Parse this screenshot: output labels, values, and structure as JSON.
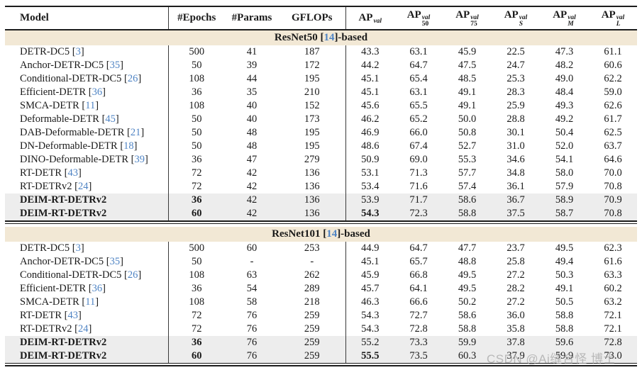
{
  "columns": {
    "model": "Model",
    "epochs": "#Epochs",
    "params": "#Params",
    "gflops": "GFLOPs",
    "ap": [
      {
        "base": "AP",
        "sup": "val",
        "sub": "",
        "sub_italic": false
      },
      {
        "base": "AP",
        "sup": "val",
        "sub": "50",
        "sub_italic": false
      },
      {
        "base": "AP",
        "sup": "val",
        "sub": "75",
        "sub_italic": false
      },
      {
        "base": "AP",
        "sup": "val",
        "sub": "S",
        "sub_italic": true
      },
      {
        "base": "AP",
        "sup": "val",
        "sub": "M",
        "sub_italic": true
      },
      {
        "base": "AP",
        "sup": "val",
        "sub": "L",
        "sub_italic": true
      }
    ]
  },
  "sections": [
    {
      "title": {
        "before": "ResNet50 [",
        "cite": "14",
        "after": "]-based"
      },
      "rows": [
        {
          "model": "DETR-DC5",
          "cite": "3",
          "epochs": "500",
          "params": "41",
          "gflops": "187",
          "ap": [
            "43.3",
            "63.1",
            "45.9",
            "22.5",
            "47.3",
            "61.1"
          ]
        },
        {
          "model": "Anchor-DETR-DC5",
          "cite": "35",
          "epochs": "50",
          "params": "39",
          "gflops": "172",
          "ap": [
            "44.2",
            "64.7",
            "47.5",
            "24.7",
            "48.2",
            "60.6"
          ]
        },
        {
          "model": "Conditional-DETR-DC5",
          "cite": "26",
          "epochs": "108",
          "params": "44",
          "gflops": "195",
          "ap": [
            "45.1",
            "65.4",
            "48.5",
            "25.3",
            "49.0",
            "62.2"
          ]
        },
        {
          "model": "Efficient-DETR",
          "cite": "36",
          "epochs": "36",
          "params": "35",
          "gflops": "210",
          "ap": [
            "45.1",
            "63.1",
            "49.1",
            "28.3",
            "48.4",
            "59.0"
          ]
        },
        {
          "model": "SMCA-DETR",
          "cite": "11",
          "epochs": "108",
          "params": "40",
          "gflops": "152",
          "ap": [
            "45.6",
            "65.5",
            "49.1",
            "25.9",
            "49.3",
            "62.6"
          ]
        },
        {
          "model": "Deformable-DETR",
          "cite": "45",
          "epochs": "50",
          "params": "40",
          "gflops": "173",
          "ap": [
            "46.2",
            "65.2",
            "50.0",
            "28.8",
            "49.2",
            "61.7"
          ]
        },
        {
          "model": "DAB-Deformable-DETR",
          "cite": "21",
          "epochs": "50",
          "params": "48",
          "gflops": "195",
          "ap": [
            "46.9",
            "66.0",
            "50.8",
            "30.1",
            "50.4",
            "62.5"
          ]
        },
        {
          "model": "DN-Deformable-DETR",
          "cite": "18",
          "epochs": "50",
          "params": "48",
          "gflops": "195",
          "ap": [
            "48.6",
            "67.4",
            "52.7",
            "31.0",
            "52.0",
            "63.7"
          ]
        },
        {
          "model": "DINO-Deformable-DETR",
          "cite": "39",
          "epochs": "36",
          "params": "47",
          "gflops": "279",
          "ap": [
            "50.9",
            "69.0",
            "55.3",
            "34.6",
            "54.1",
            "64.6"
          ]
        },
        {
          "model": "RT-DETR",
          "cite": "43",
          "epochs": "72",
          "params": "42",
          "gflops": "136",
          "ap": [
            "53.1",
            "71.3",
            "57.7",
            "34.8",
            "58.0",
            "70.0"
          ]
        },
        {
          "model": "RT-DETRv2",
          "cite": "24",
          "epochs": "72",
          "params": "42",
          "gflops": "136",
          "ap": [
            "53.4",
            "71.6",
            "57.4",
            "36.1",
            "57.9",
            "70.8"
          ]
        },
        {
          "model": "DEIM-RT-DETRv2",
          "cite": null,
          "epochs": "36",
          "params": "42",
          "gflops": "136",
          "ap": [
            "53.9",
            "71.7",
            "58.6",
            "36.7",
            "58.9",
            "70.9"
          ],
          "highlight": true,
          "bold_model": true,
          "bold_epochs": true
        },
        {
          "model": "DEIM-RT-DETRv2",
          "cite": null,
          "epochs": "60",
          "params": "42",
          "gflops": "136",
          "ap": [
            "54.3",
            "72.3",
            "58.8",
            "37.5",
            "58.7",
            "70.8"
          ],
          "highlight": true,
          "bold_model": true,
          "bold_epochs": true,
          "bold_ap_first": true
        }
      ]
    },
    {
      "title": {
        "before": "ResNet101 [",
        "cite": "14",
        "after": "]-based"
      },
      "rows": [
        {
          "model": "DETR-DC5",
          "cite": "3",
          "epochs": "500",
          "params": "60",
          "gflops": "253",
          "ap": [
            "44.9",
            "64.7",
            "47.7",
            "23.7",
            "49.5",
            "62.3"
          ]
        },
        {
          "model": "Anchor-DETR-DC5",
          "cite": "35",
          "epochs": "50",
          "params": "-",
          "gflops": "-",
          "ap": [
            "45.1",
            "65.7",
            "48.8",
            "25.8",
            "49.4",
            "61.6"
          ]
        },
        {
          "model": "Conditional-DETR-DC5",
          "cite": "26",
          "epochs": "108",
          "params": "63",
          "gflops": "262",
          "ap": [
            "45.9",
            "66.8",
            "49.5",
            "27.2",
            "50.3",
            "63.3"
          ]
        },
        {
          "model": "Efficient-DETR",
          "cite": "36",
          "epochs": "36",
          "params": "54",
          "gflops": "289",
          "ap": [
            "45.7",
            "64.1",
            "49.5",
            "28.2",
            "49.1",
            "60.2"
          ]
        },
        {
          "model": "SMCA-DETR",
          "cite": "11",
          "epochs": "108",
          "params": "58",
          "gflops": "218",
          "ap": [
            "46.3",
            "66.6",
            "50.2",
            "27.2",
            "50.5",
            "63.2"
          ]
        },
        {
          "model": "RT-DETR",
          "cite": "43",
          "epochs": "72",
          "params": "76",
          "gflops": "259",
          "ap": [
            "54.3",
            "72.7",
            "58.6",
            "36.0",
            "58.8",
            "72.1"
          ]
        },
        {
          "model": "RT-DETRv2",
          "cite": "24",
          "epochs": "72",
          "params": "76",
          "gflops": "259",
          "ap": [
            "54.3",
            "72.8",
            "58.8",
            "35.8",
            "58.8",
            "72.1"
          ]
        },
        {
          "model": "DEIM-RT-DETRv2",
          "cite": null,
          "epochs": "36",
          "params": "76",
          "gflops": "259",
          "ap": [
            "55.2",
            "73.3",
            "59.9",
            "37.8",
            "59.6",
            "72.8"
          ],
          "highlight": true,
          "bold_model": true,
          "bold_epochs": true
        },
        {
          "model": "DEIM-RT-DETRv2",
          "cite": null,
          "epochs": "60",
          "params": "76",
          "gflops": "259",
          "ap": [
            "55.5",
            "73.5",
            "60.3",
            "37.9",
            "59.9",
            "73.0"
          ],
          "highlight": true,
          "bold_model": true,
          "bold_epochs": true,
          "bold_ap_first": true
        }
      ]
    }
  ],
  "watermark": {
    "text": "CSDN @Ai缝合怪 博士"
  },
  "colors": {
    "section_bg": "#f2e8d5",
    "highlight_bg": "#ededed",
    "cite": "#4f84c4",
    "rule": "#1c1c1c"
  }
}
